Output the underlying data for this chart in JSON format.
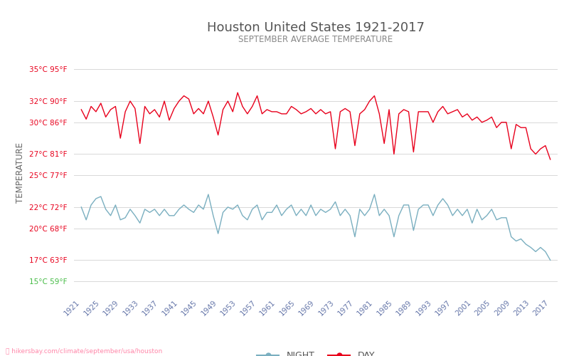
{
  "title": "Houston United States 1921-2017",
  "subtitle": "SEPTEMBER AVERAGE TEMPERATURE",
  "ylabel": "TEMPERATURE",
  "y_ticks_c": [
    15,
    17,
    20,
    22,
    25,
    27,
    30,
    32,
    35
  ],
  "y_ticks_f": [
    59,
    63,
    68,
    72,
    77,
    81,
    86,
    90,
    95
  ],
  "ylim": [
    14.0,
    36.5
  ],
  "x_ticks": [
    1921,
    1925,
    1929,
    1933,
    1937,
    1941,
    1945,
    1949,
    1953,
    1957,
    1961,
    1965,
    1969,
    1973,
    1977,
    1981,
    1985,
    1989,
    1993,
    1997,
    2001,
    2005,
    2009,
    2013,
    2017
  ],
  "xlim": [
    1919.5,
    2018.5
  ],
  "day_color": "#e8001c",
  "night_color": "#7aafc0",
  "title_color": "#555555",
  "subtitle_color": "#888888",
  "tick_label_color": "#e8001c",
  "tick_label_color_green": "#44bb44",
  "watermark": "hikersbay.com/climate/september/usa/houston",
  "background_color": "#ffffff",
  "grid_color": "#d8d8d8",
  "years": [
    1921,
    1922,
    1923,
    1924,
    1925,
    1926,
    1927,
    1928,
    1929,
    1930,
    1931,
    1932,
    1933,
    1934,
    1935,
    1936,
    1937,
    1938,
    1939,
    1940,
    1941,
    1942,
    1943,
    1944,
    1945,
    1946,
    1947,
    1948,
    1949,
    1950,
    1951,
    1952,
    1953,
    1954,
    1955,
    1956,
    1957,
    1958,
    1959,
    1960,
    1961,
    1962,
    1963,
    1964,
    1965,
    1966,
    1967,
    1968,
    1969,
    1970,
    1971,
    1972,
    1973,
    1974,
    1975,
    1976,
    1977,
    1978,
    1979,
    1980,
    1981,
    1982,
    1983,
    1984,
    1985,
    1986,
    1987,
    1988,
    1989,
    1990,
    1991,
    1992,
    1993,
    1994,
    1995,
    1996,
    1997,
    1998,
    1999,
    2000,
    2001,
    2002,
    2003,
    2004,
    2005,
    2006,
    2007,
    2008,
    2009,
    2010,
    2011,
    2012,
    2013,
    2014,
    2015,
    2016,
    2017
  ],
  "day_temps": [
    31.2,
    30.3,
    31.5,
    31.0,
    31.8,
    30.5,
    31.2,
    31.5,
    28.5,
    31.0,
    32.0,
    31.3,
    28.0,
    31.5,
    30.8,
    31.2,
    30.5,
    32.0,
    30.2,
    31.3,
    32.0,
    32.5,
    32.2,
    30.8,
    31.3,
    30.8,
    32.0,
    30.5,
    28.8,
    31.2,
    32.0,
    31.0,
    32.8,
    31.5,
    30.8,
    31.5,
    32.5,
    30.8,
    31.2,
    31.0,
    31.0,
    30.8,
    30.8,
    31.5,
    31.2,
    30.8,
    31.0,
    31.3,
    30.8,
    31.2,
    30.8,
    31.0,
    27.5,
    31.0,
    31.3,
    31.0,
    27.8,
    30.8,
    31.2,
    32.0,
    32.5,
    30.8,
    28.0,
    31.2,
    27.0,
    30.8,
    31.2,
    31.0,
    27.2,
    31.0,
    31.0,
    31.0,
    30.0,
    31.0,
    31.5,
    30.8,
    31.0,
    31.2,
    30.5,
    30.8,
    30.2,
    30.5,
    30.0,
    30.2,
    30.5,
    29.5,
    30.0,
    30.0,
    27.5,
    29.8,
    29.5,
    29.5,
    27.5,
    27.0,
    27.5,
    27.8,
    26.5
  ],
  "night_temps": [
    22.0,
    20.8,
    22.2,
    22.8,
    23.0,
    21.8,
    21.2,
    22.2,
    20.8,
    21.0,
    21.8,
    21.2,
    20.5,
    21.8,
    21.5,
    21.8,
    21.2,
    21.8,
    21.2,
    21.2,
    21.8,
    22.2,
    21.8,
    21.5,
    22.2,
    21.8,
    23.2,
    21.2,
    19.5,
    21.5,
    22.0,
    21.8,
    22.2,
    21.2,
    20.8,
    21.8,
    22.2,
    20.8,
    21.5,
    21.5,
    22.2,
    21.2,
    21.8,
    22.2,
    21.2,
    21.8,
    21.2,
    22.2,
    21.2,
    21.8,
    21.5,
    21.8,
    22.5,
    21.2,
    21.8,
    21.2,
    19.2,
    21.8,
    21.2,
    21.8,
    23.2,
    21.2,
    21.8,
    21.2,
    19.2,
    21.2,
    22.2,
    22.2,
    19.8,
    21.8,
    22.2,
    22.2,
    21.2,
    22.2,
    22.8,
    22.2,
    21.2,
    21.8,
    21.2,
    21.8,
    20.5,
    21.8,
    20.8,
    21.2,
    21.8,
    20.8,
    21.0,
    21.0,
    19.2,
    18.8,
    19.0,
    18.5,
    18.2,
    17.8,
    18.2,
    17.8,
    17.0
  ]
}
